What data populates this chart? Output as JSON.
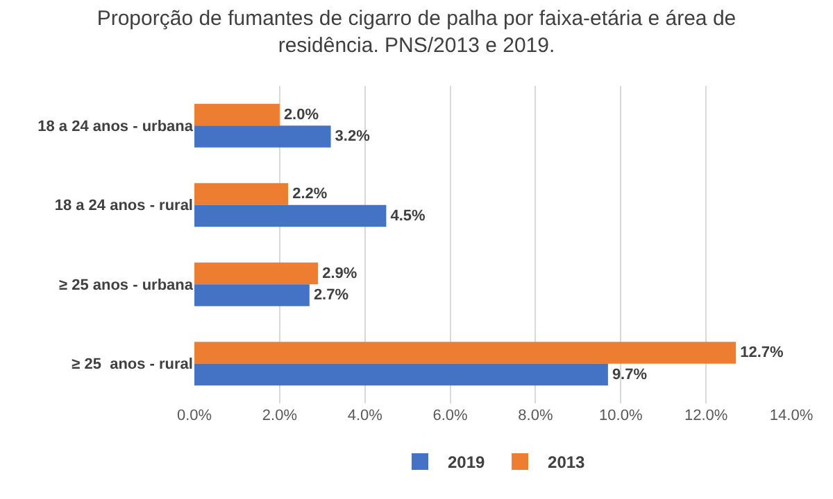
{
  "chart_data": {
    "type": "bar",
    "orientation": "horizontal",
    "title": "Proporção de fumantes de cigarro de palha por faixa-etária e área de residência. PNS/2013 e 2019.",
    "categories": [
      "18 a 24 anos - urbana",
      "18 a 24 anos - rural",
      "≥ 25 anos - urbana",
      "≥ 25  anos - rural"
    ],
    "series": [
      {
        "name": "2013",
        "color": "#ed7d31",
        "values": [
          2.0,
          2.2,
          2.9,
          12.7
        ],
        "value_labels": [
          "2.0%",
          "2.2%",
          "2.9%",
          "12.7%"
        ]
      },
      {
        "name": "2019",
        "color": "#4472c4",
        "values": [
          3.2,
          4.5,
          2.7,
          9.7
        ],
        "value_labels": [
          "3.2%",
          "4.5%",
          "2.7%",
          "9.7%"
        ]
      }
    ],
    "xlim": [
      0,
      14
    ],
    "xticks": [
      {
        "value": 0,
        "label": "0.0%"
      },
      {
        "value": 2,
        "label": "2.0%"
      },
      {
        "value": 4,
        "label": "4.0%"
      },
      {
        "value": 6,
        "label": "6.0%"
      },
      {
        "value": 8,
        "label": "8.0%"
      },
      {
        "value": 10,
        "label": "10.0%"
      },
      {
        "value": 12,
        "label": "12.0%"
      },
      {
        "value": 14,
        "label": "14.0%"
      }
    ],
    "grid": "x",
    "legend": "bottom"
  }
}
